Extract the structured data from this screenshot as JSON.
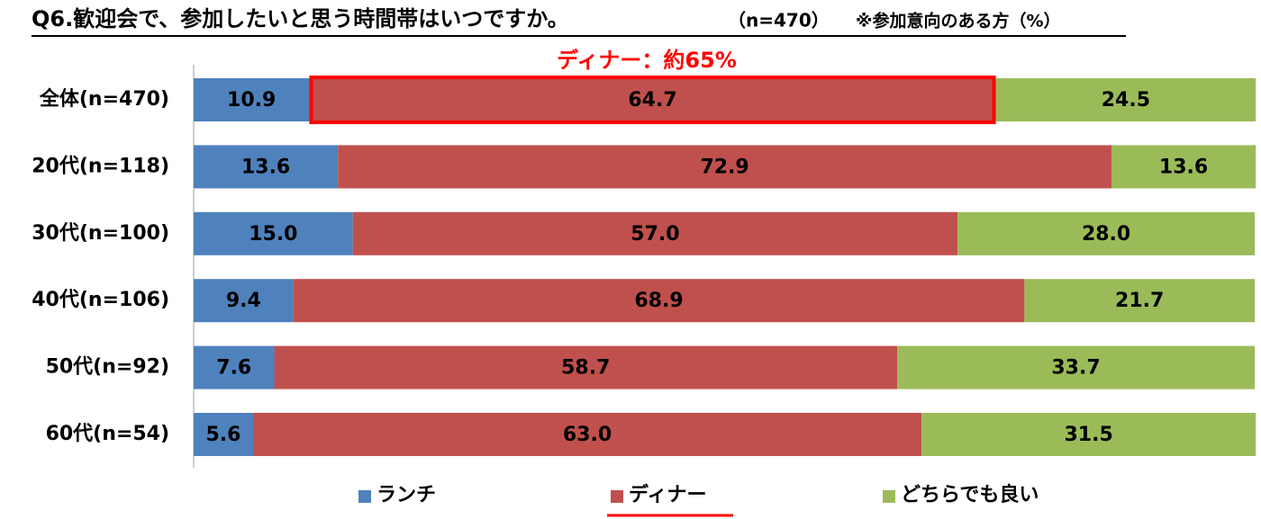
{
  "chart_data": {
    "type": "stacked-bar-horizontal",
    "title": "Q6.歓迎会で、参加したいと思う時間帯はいつですか。",
    "subtitle": "（n=470）",
    "note": "※参加意向のある方（%）",
    "annotation": "ディナー：約65%",
    "categories": [
      "全体(n=470)",
      "20代(n=118)",
      "30代(n=100)",
      "40代(n=106)",
      "50代(n=92)",
      "60代(n=54)"
    ],
    "series": [
      {
        "name": "ランチ",
        "color": "#4f81bd",
        "values": [
          10.9,
          13.6,
          15.0,
          9.4,
          7.6,
          5.6
        ],
        "value_labels": [
          "10.9",
          "13.6",
          "15.0",
          "9.4",
          "7.6",
          "5.6"
        ]
      },
      {
        "name": "ディナー",
        "color": "#c0504d",
        "values": [
          64.7,
          72.9,
          57.0,
          68.9,
          58.7,
          63.0
        ],
        "value_labels": [
          "64.7",
          "72.9",
          "57.0",
          "68.9",
          "58.7",
          "63.0"
        ]
      },
      {
        "name": "どちらでも良い",
        "color": "#9bbb59",
        "values": [
          24.5,
          13.6,
          28.0,
          21.7,
          33.7,
          31.5
        ],
        "value_labels": [
          "24.5",
          "13.6",
          "28.0",
          "21.7",
          "33.7",
          "31.5"
        ]
      }
    ],
    "xlim": [
      0,
      100
    ],
    "legend": "bottom"
  }
}
